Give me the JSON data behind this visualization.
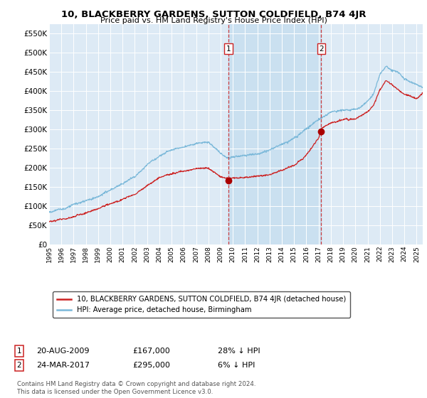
{
  "title": "10, BLACKBERRY GARDENS, SUTTON COLDFIELD, B74 4JR",
  "subtitle": "Price paid vs. HM Land Registry's House Price Index (HPI)",
  "hpi_color": "#7ab8d9",
  "price_color": "#cc2222",
  "marker_color": "#aa0000",
  "plot_bg": "#ddeaf5",
  "shade_color": "#c8dff0",
  "ylim": [
    0,
    575000
  ],
  "yticks": [
    0,
    50000,
    100000,
    150000,
    200000,
    250000,
    300000,
    350000,
    400000,
    450000,
    500000,
    550000
  ],
  "transaction1": {
    "date": "20-AUG-2009",
    "price": 167000,
    "pct_hpi": "28% ↓ HPI",
    "label": "1",
    "x": 2009.63
  },
  "transaction2": {
    "date": "24-MAR-2017",
    "price": 295000,
    "pct_hpi": "6% ↓ HPI",
    "label": "2",
    "x": 2017.22
  },
  "legend_line1": "10, BLACKBERRY GARDENS, SUTTON COLDFIELD, B74 4JR (detached house)",
  "legend_line2": "HPI: Average price, detached house, Birmingham",
  "footnote": "Contains HM Land Registry data © Crown copyright and database right 2024.\nThis data is licensed under the Open Government Licence v3.0.",
  "xstart_year": 1995,
  "xend_year": 2025
}
